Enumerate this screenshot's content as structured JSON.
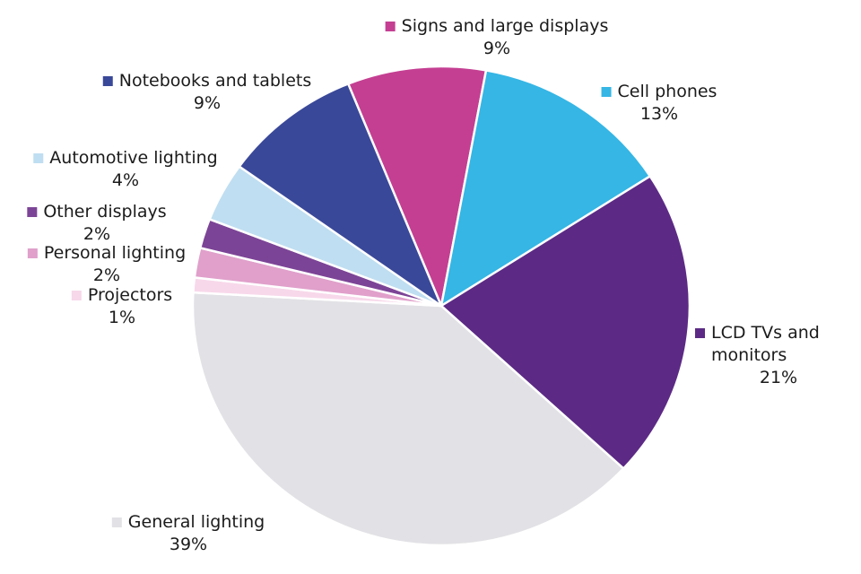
{
  "chart_data": {
    "type": "pie",
    "title": "",
    "unit": "%",
    "legend_position": "callout-labels-around-pie",
    "start_angle_deg": -22,
    "slices": [
      {
        "label": "Signs and large displays",
        "value": 9,
        "pct_label": "9%",
        "color": "#C43F92"
      },
      {
        "label": "Cell phones",
        "value": 13,
        "pct_label": "13%",
        "color": "#35B6E5"
      },
      {
        "label": "LCD TVs and monitors",
        "value": 21,
        "pct_label": "21%",
        "color": "#5C2A85"
      },
      {
        "label": "General lighting",
        "value": 39,
        "pct_label": "39%",
        "color": "#E2E2E6"
      },
      {
        "label": "Projectors",
        "value": 1,
        "pct_label": "1%",
        "color": "#F7D8EA"
      },
      {
        "label": "Personal lighting",
        "value": 2,
        "pct_label": "2%",
        "color": "#E0A0CB"
      },
      {
        "label": "Other displays",
        "value": 2,
        "pct_label": "2%",
        "color": "#7C4496"
      },
      {
        "label": "Automotive lighting",
        "value": 4,
        "pct_label": "4%",
        "color": "#BFDEF1"
      },
      {
        "label": "Notebooks and tablets",
        "value": 9,
        "pct_label": "9%",
        "color": "#3A4899"
      }
    ]
  }
}
